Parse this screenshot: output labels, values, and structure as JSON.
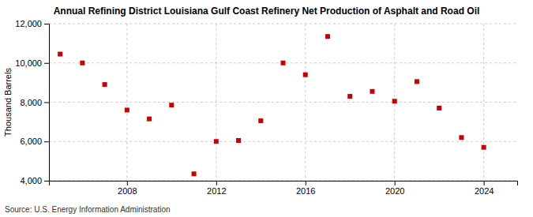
{
  "chart_data": {
    "type": "scatter",
    "title": "Annual Refining District Louisiana Gulf Coast Refinery Net Production of Asphalt and Road Oil",
    "y_label": "Thousand Barrels",
    "source": "Source: U.S. Energy Information Administration",
    "x": [
      2005,
      2006,
      2007,
      2008,
      2009,
      2010,
      2011,
      2012,
      2013,
      2014,
      2015,
      2016,
      2017,
      2018,
      2019,
      2020,
      2021,
      2022,
      2023,
      2024
    ],
    "values": [
      10450,
      10000,
      8900,
      7600,
      7150,
      7850,
      4350,
      6000,
      6050,
      7050,
      10000,
      9400,
      11350,
      8300,
      8550,
      8050,
      9050,
      7700,
      6200,
      5700
    ],
    "color": "#cc0000",
    "marker": "square",
    "xlim": [
      2004.5,
      2025.5
    ],
    "xticks": [
      2008,
      2012,
      2016,
      2020,
      2024
    ],
    "ylim": [
      4000,
      12000
    ],
    "yticks": [
      {
        "value": 4000,
        "label": "4,000"
      },
      {
        "value": 6000,
        "label": "6,000"
      },
      {
        "value": 8000,
        "label": "8,000"
      },
      {
        "value": 10000,
        "label": "10,000"
      },
      {
        "value": 12000,
        "label": "12,000"
      }
    ],
    "grid": true
  }
}
